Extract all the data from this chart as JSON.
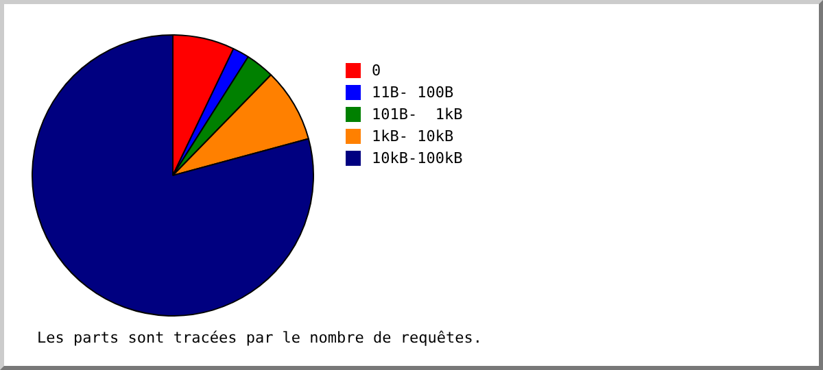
{
  "chart_data": {
    "type": "pie",
    "categories": [
      "0",
      "11B- 100B",
      "101B-  1kB",
      "1kB- 10kB",
      "10kB-100kB"
    ],
    "values": [
      7.1,
      1.9,
      3.3,
      8.5,
      79.2
    ],
    "colors": [
      "#ff0000",
      "#0000ff",
      "#008000",
      "#ff8000",
      "#000080"
    ],
    "legend": "right",
    "annotations": [
      "Les parts sont tracées par le nombre de requêtes."
    ]
  }
}
